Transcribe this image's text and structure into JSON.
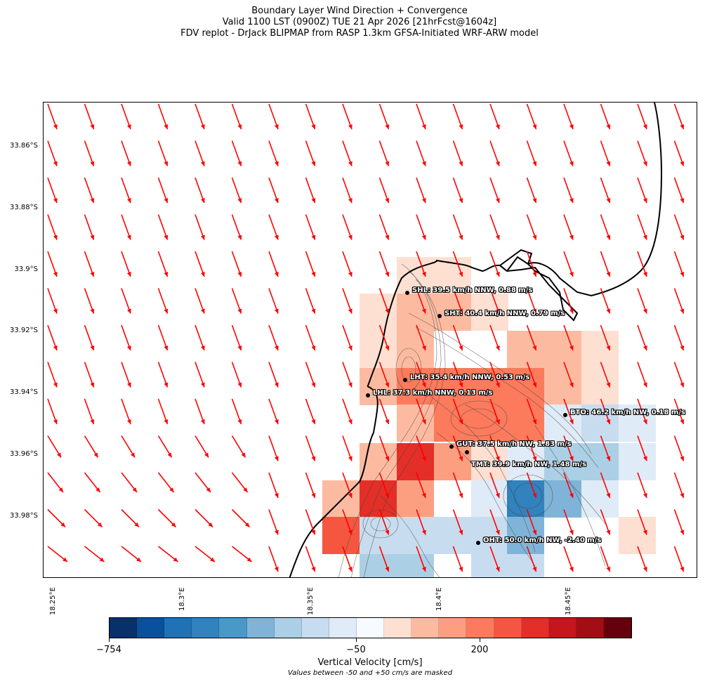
{
  "title": {
    "line1": "Boundary Layer Wind Direction + Convergence",
    "line2": "Valid 1100 LST (0900Z) TUE 21 Apr 2026 [21hrFcst@1604z]",
    "line3": "FDV replot - DrJack BLIPMAP from RASP 1.3km GFSA-Initiated WRF-ARW model"
  },
  "axes": {
    "lat_labels": [
      "33.86°S",
      "33.88°S",
      "33.9°S",
      "33.92°S",
      "33.94°S",
      "33.96°S",
      "33.98°S"
    ],
    "lon_labels": [
      "18.25°E",
      "18.3°E",
      "18.35°E",
      "18.4°E",
      "18.45°E"
    ]
  },
  "colors": {
    "wind_arrow": "#ff0000",
    "coastline": "#000000",
    "terrain_contour": "#444444"
  },
  "stations": [
    {
      "name": "SHL",
      "label": "SHL: 39.5 km/h NNW, 0.88 m/s"
    },
    {
      "name": "SHT",
      "label": "SHT: 40.4 km/h NNW, 0.79 m/s"
    },
    {
      "name": "LHT",
      "label": "LHT: 35.4 km/h NNW, 0.53 m/s"
    },
    {
      "name": "LHL",
      "label": "LHL: 37.3 km/h NNW, 0.13 m/s"
    },
    {
      "name": "BTO",
      "label": "BTO: 46.2 km/h NW, 0.18 m/s"
    },
    {
      "name": "GUT",
      "label": "GUT: 37.5 km/h NW, 1.83 m/s"
    },
    {
      "name": "TMT",
      "label": "TMT: 39.9 km/h NW, 1.48 m/s"
    },
    {
      "name": "OHT",
      "label": "OHT: 50.0 km/h NW, -2.40 m/s"
    }
  ],
  "colorbar": {
    "tick_labels": [
      "−754",
      "−50",
      "200"
    ],
    "label": "Vertical Velocity [cm/s]",
    "note": "Values between -50 and +50 cm/s are masked",
    "colors": [
      "#08306b",
      "#08519c",
      "#2171b5",
      "#3182bd",
      "#4a98c9",
      "#7fb4d8",
      "#abcfe5",
      "#c8dcef",
      "#dfebf7",
      "#f7fbff",
      "#fde0d2",
      "#fcbba1",
      "#fc9f80",
      "#fb7b5c",
      "#f5563f",
      "#e32f27",
      "#c4161c",
      "#a10f15",
      "#67000d"
    ]
  }
}
